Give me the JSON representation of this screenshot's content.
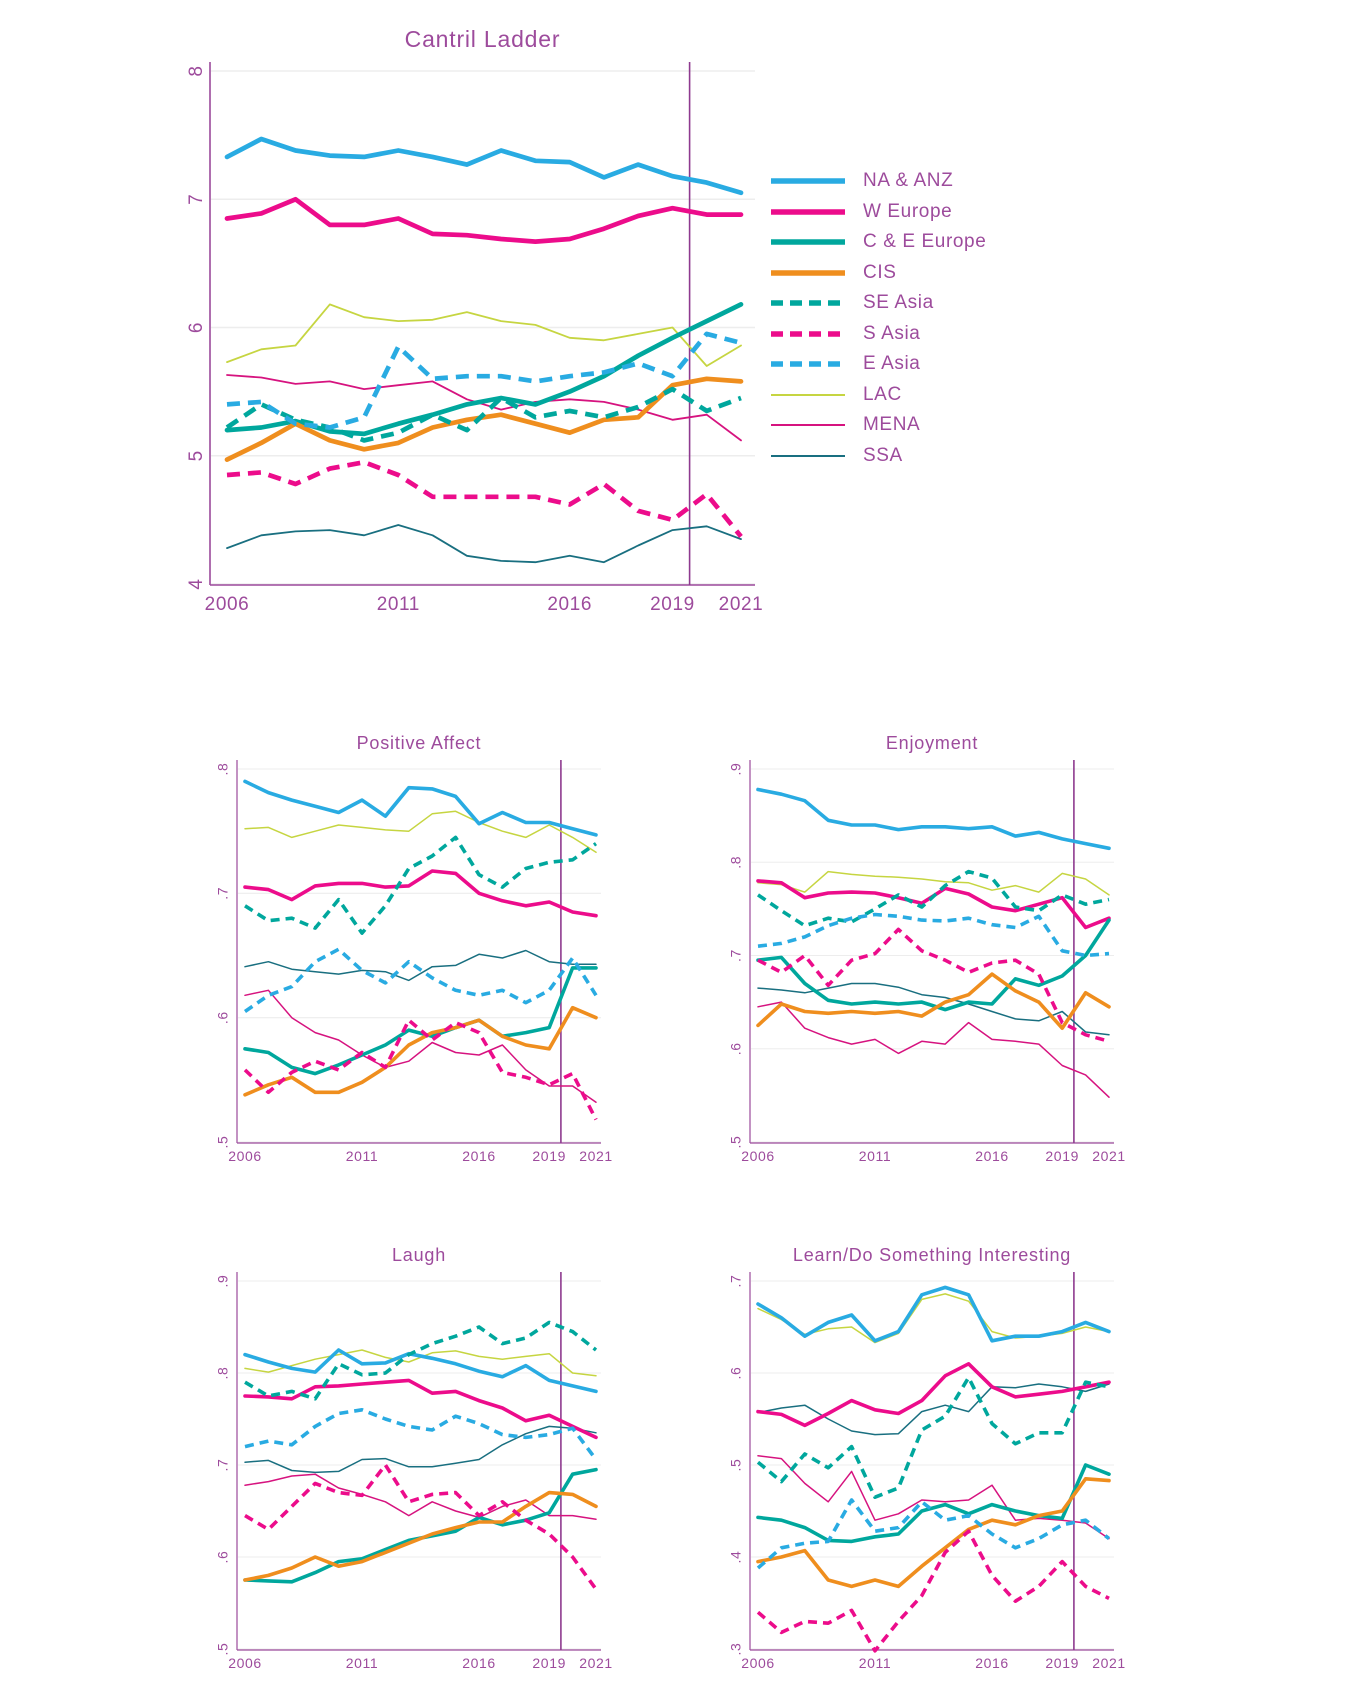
{
  "colors": {
    "blue": "#29ABE2",
    "magenta": "#EC0C8B",
    "teal": "#00A79D",
    "orange": "#EF8E1E",
    "lime": "#C6D541",
    "crimson": "#D6137F",
    "dark_teal": "#196F80",
    "text_purple": "#9D4B9C",
    "axis_purple": "#9B4A9B",
    "refline_purple": "#8E3A8F",
    "grid_gray": "#EDEDED"
  },
  "regions": [
    {
      "id": "na_anz",
      "label": "NA & ANZ",
      "color": "blue",
      "weight": "thick",
      "dash": false
    },
    {
      "id": "w_europe",
      "label": "W Europe",
      "color": "magenta",
      "weight": "thick",
      "dash": false
    },
    {
      "id": "c_e_europe",
      "label": "C & E Europe",
      "color": "teal",
      "weight": "thick",
      "dash": false
    },
    {
      "id": "cis",
      "label": "CIS",
      "color": "orange",
      "weight": "thick",
      "dash": false
    },
    {
      "id": "se_asia",
      "label": "SE Asia",
      "color": "teal",
      "weight": "thick",
      "dash": true
    },
    {
      "id": "s_asia",
      "label": "S Asia",
      "color": "magenta",
      "weight": "thick",
      "dash": true
    },
    {
      "id": "e_asia",
      "label": "E Asia",
      "color": "blue",
      "weight": "thick",
      "dash": true
    },
    {
      "id": "lac",
      "label": "LAC",
      "color": "lime",
      "weight": "thin",
      "dash": false
    },
    {
      "id": "mena",
      "label": "MENA",
      "color": "crimson",
      "weight": "thin",
      "dash": false
    },
    {
      "id": "ssa",
      "label": "SSA",
      "color": "dark_teal",
      "weight": "thin",
      "dash": false
    }
  ],
  "x": {
    "years": [
      2006,
      2007,
      2008,
      2009,
      2010,
      2011,
      2012,
      2013,
      2014,
      2015,
      2016,
      2017,
      2018,
      2019,
      2020,
      2021
    ],
    "tick_years": [
      2006,
      2011,
      2016,
      2019,
      2021
    ],
    "refline_year": 2019.5
  },
  "chart_data": [
    {
      "type": "line",
      "id": "cantril_ladder",
      "title": "Cantril Ladder",
      "ylim": [
        4,
        8
      ],
      "yticks": [
        {
          "v": 4,
          "label": "4"
        },
        {
          "v": 5,
          "label": "5"
        },
        {
          "v": 6,
          "label": "6"
        },
        {
          "v": 7,
          "label": "7"
        },
        {
          "v": 8,
          "label": "8"
        }
      ],
      "grid": true,
      "legend_position": "right",
      "series": {
        "na_anz": [
          7.33,
          7.47,
          7.38,
          7.34,
          7.33,
          7.38,
          7.33,
          7.27,
          7.38,
          7.3,
          7.29,
          7.17,
          7.27,
          7.18,
          7.13,
          7.05
        ],
        "w_europe": [
          6.85,
          6.89,
          7.0,
          6.8,
          6.8,
          6.85,
          6.73,
          6.72,
          6.69,
          6.67,
          6.69,
          6.77,
          6.87,
          6.93,
          6.88,
          6.88
        ],
        "c_e_europe": [
          5.2,
          5.22,
          5.27,
          5.19,
          5.17,
          5.25,
          5.32,
          5.4,
          5.45,
          5.4,
          5.5,
          5.62,
          5.78,
          5.92,
          6.05,
          6.18
        ],
        "cis": [
          4.97,
          5.1,
          5.25,
          5.12,
          5.05,
          5.1,
          5.22,
          5.28,
          5.32,
          5.25,
          5.18,
          5.28,
          5.3,
          5.55,
          5.6,
          5.58
        ],
        "se_asia": [
          5.22,
          5.4,
          5.28,
          5.22,
          5.12,
          5.18,
          5.32,
          5.2,
          5.45,
          5.3,
          5.35,
          5.3,
          5.38,
          5.52,
          5.35,
          5.45
        ],
        "s_asia": [
          4.85,
          4.87,
          4.78,
          4.9,
          4.95,
          4.85,
          4.68,
          4.68,
          4.68,
          4.68,
          4.62,
          4.78,
          4.57,
          4.5,
          4.7,
          4.37
        ],
        "e_asia": [
          5.4,
          5.42,
          5.25,
          5.22,
          5.3,
          5.85,
          5.6,
          5.62,
          5.62,
          5.58,
          5.62,
          5.65,
          5.72,
          5.62,
          5.95,
          5.88
        ],
        "lac": [
          5.73,
          5.83,
          5.86,
          6.18,
          6.08,
          6.05,
          6.06,
          6.12,
          6.05,
          6.02,
          5.92,
          5.9,
          5.95,
          6.0,
          5.7,
          5.86
        ],
        "mena": [
          5.63,
          5.61,
          5.56,
          5.58,
          5.52,
          5.55,
          5.58,
          5.44,
          5.36,
          5.42,
          5.44,
          5.42,
          5.36,
          5.28,
          5.32,
          5.12
        ],
        "ssa": [
          4.28,
          4.38,
          4.41,
          4.42,
          4.38,
          4.46,
          4.38,
          4.22,
          4.18,
          4.17,
          4.22,
          4.17,
          4.3,
          4.42,
          4.45,
          4.35
        ]
      }
    },
    {
      "type": "line",
      "id": "positive_affect",
      "title": "Positive Affect",
      "ylim": [
        0.5,
        0.8
      ],
      "yticks": [
        {
          "v": 0.5,
          "label": ".5"
        },
        {
          "v": 0.6,
          "label": ".6"
        },
        {
          "v": 0.7,
          "label": ".7"
        },
        {
          "v": 0.8,
          "label": ".8"
        }
      ],
      "grid": true,
      "series": {
        "na_anz": [
          0.79,
          0.781,
          0.775,
          0.77,
          0.765,
          0.775,
          0.762,
          0.785,
          0.784,
          0.778,
          0.756,
          0.765,
          0.757,
          0.757,
          0.752,
          0.747
        ],
        "w_europe": [
          0.705,
          0.703,
          0.695,
          0.706,
          0.708,
          0.708,
          0.705,
          0.706,
          0.718,
          0.716,
          0.7,
          0.694,
          0.69,
          0.693,
          0.685,
          0.682
        ],
        "c_e_europe": [
          0.575,
          0.572,
          0.56,
          0.555,
          0.562,
          0.57,
          0.578,
          0.59,
          0.585,
          0.592,
          0.598,
          0.585,
          0.588,
          0.592,
          0.64,
          0.64
        ],
        "cis": [
          0.538,
          0.546,
          0.552,
          0.54,
          0.54,
          0.548,
          0.56,
          0.578,
          0.588,
          0.592,
          0.598,
          0.585,
          0.578,
          0.575,
          0.608,
          0.6
        ],
        "se_asia": [
          0.69,
          0.678,
          0.68,
          0.672,
          0.695,
          0.668,
          0.69,
          0.72,
          0.73,
          0.745,
          0.715,
          0.705,
          0.72,
          0.725,
          0.727,
          0.74
        ],
        "s_asia": [
          0.558,
          0.54,
          0.556,
          0.565,
          0.558,
          0.572,
          0.56,
          0.598,
          0.582,
          0.596,
          0.588,
          0.556,
          0.552,
          0.546,
          0.555,
          0.518
        ],
        "e_asia": [
          0.605,
          0.618,
          0.625,
          0.645,
          0.655,
          0.638,
          0.628,
          0.645,
          0.632,
          0.622,
          0.618,
          0.622,
          0.612,
          0.622,
          0.648,
          0.618
        ],
        "lac": [
          0.752,
          0.753,
          0.745,
          0.75,
          0.755,
          0.753,
          0.751,
          0.75,
          0.764,
          0.766,
          0.757,
          0.75,
          0.745,
          0.755,
          0.745,
          0.733
        ],
        "mena": [
          0.618,
          0.622,
          0.6,
          0.588,
          0.582,
          0.57,
          0.56,
          0.565,
          0.58,
          0.572,
          0.57,
          0.578,
          0.558,
          0.545,
          0.545,
          0.532
        ],
        "ssa": [
          0.641,
          0.645,
          0.639,
          0.637,
          0.635,
          0.638,
          0.637,
          0.63,
          0.641,
          0.642,
          0.651,
          0.648,
          0.654,
          0.645,
          0.643,
          0.643
        ]
      }
    },
    {
      "type": "line",
      "id": "enjoyment",
      "title": "Enjoyment",
      "ylim": [
        0.5,
        0.9
      ],
      "yticks": [
        {
          "v": 0.5,
          "label": ".5"
        },
        {
          "v": 0.6,
          "label": ".6"
        },
        {
          "v": 0.7,
          "label": ".7"
        },
        {
          "v": 0.8,
          "label": ".8"
        },
        {
          "v": 0.9,
          "label": ".9"
        }
      ],
      "grid": true,
      "series": {
        "na_anz": [
          0.878,
          0.873,
          0.866,
          0.845,
          0.84,
          0.84,
          0.835,
          0.838,
          0.838,
          0.836,
          0.838,
          0.828,
          0.832,
          0.825,
          0.82,
          0.815
        ],
        "w_europe": [
          0.78,
          0.778,
          0.762,
          0.767,
          0.768,
          0.767,
          0.762,
          0.756,
          0.772,
          0.766,
          0.752,
          0.748,
          0.755,
          0.762,
          0.73,
          0.74
        ],
        "c_e_europe": [
          0.695,
          0.698,
          0.67,
          0.652,
          0.648,
          0.65,
          0.648,
          0.65,
          0.642,
          0.65,
          0.648,
          0.675,
          0.668,
          0.678,
          0.7,
          0.738
        ],
        "cis": [
          0.625,
          0.648,
          0.64,
          0.638,
          0.64,
          0.638,
          0.64,
          0.635,
          0.65,
          0.658,
          0.68,
          0.662,
          0.65,
          0.622,
          0.66,
          0.645
        ],
        "se_asia": [
          0.765,
          0.748,
          0.732,
          0.74,
          0.736,
          0.75,
          0.765,
          0.752,
          0.775,
          0.79,
          0.783,
          0.752,
          0.748,
          0.765,
          0.755,
          0.76
        ],
        "s_asia": [
          0.695,
          0.682,
          0.7,
          0.668,
          0.695,
          0.702,
          0.728,
          0.705,
          0.695,
          0.682,
          0.692,
          0.695,
          0.68,
          0.628,
          0.615,
          0.608
        ],
        "e_asia": [
          0.71,
          0.713,
          0.72,
          0.732,
          0.74,
          0.744,
          0.742,
          0.738,
          0.737,
          0.74,
          0.733,
          0.73,
          0.742,
          0.705,
          0.7,
          0.702
        ],
        "lac": [
          0.778,
          0.776,
          0.768,
          0.79,
          0.787,
          0.785,
          0.784,
          0.782,
          0.779,
          0.778,
          0.77,
          0.775,
          0.768,
          0.788,
          0.782,
          0.765
        ],
        "mena": [
          0.645,
          0.65,
          0.622,
          0.612,
          0.605,
          0.61,
          0.595,
          0.608,
          0.605,
          0.628,
          0.61,
          0.608,
          0.605,
          0.582,
          0.572,
          0.548
        ],
        "ssa": [
          0.665,
          0.663,
          0.66,
          0.665,
          0.67,
          0.67,
          0.666,
          0.658,
          0.655,
          0.648,
          0.64,
          0.632,
          0.63,
          0.64,
          0.618,
          0.615
        ]
      }
    },
    {
      "type": "line",
      "id": "laugh",
      "title": "Laugh",
      "ylim": [
        0.5,
        0.9
      ],
      "yticks": [
        {
          "v": 0.5,
          "label": ".5"
        },
        {
          "v": 0.6,
          "label": ".6"
        },
        {
          "v": 0.7,
          "label": ".7"
        },
        {
          "v": 0.8,
          "label": ".8"
        },
        {
          "v": 0.9,
          "label": ".9"
        }
      ],
      "grid": true,
      "series": {
        "na_anz": [
          0.82,
          0.812,
          0.805,
          0.801,
          0.825,
          0.81,
          0.811,
          0.821,
          0.816,
          0.81,
          0.802,
          0.796,
          0.808,
          0.792,
          0.786,
          0.78
        ],
        "w_europe": [
          0.775,
          0.774,
          0.772,
          0.785,
          0.786,
          0.788,
          0.79,
          0.792,
          0.778,
          0.78,
          0.77,
          0.762,
          0.748,
          0.754,
          0.742,
          0.73
        ],
        "c_e_europe": [
          0.575,
          0.574,
          0.573,
          0.583,
          0.595,
          0.598,
          0.608,
          0.618,
          0.623,
          0.628,
          0.643,
          0.635,
          0.64,
          0.648,
          0.69,
          0.695
        ],
        "cis": [
          0.575,
          0.58,
          0.588,
          0.6,
          0.59,
          0.595,
          0.605,
          0.615,
          0.625,
          0.632,
          0.638,
          0.638,
          0.655,
          0.67,
          0.668,
          0.655
        ],
        "se_asia": [
          0.79,
          0.775,
          0.78,
          0.772,
          0.81,
          0.798,
          0.8,
          0.82,
          0.832,
          0.84,
          0.85,
          0.832,
          0.838,
          0.855,
          0.845,
          0.825
        ],
        "s_asia": [
          0.645,
          0.63,
          0.655,
          0.68,
          0.67,
          0.667,
          0.7,
          0.66,
          0.668,
          0.67,
          0.645,
          0.66,
          0.64,
          0.625,
          0.6,
          0.565
        ],
        "e_asia": [
          0.72,
          0.726,
          0.722,
          0.742,
          0.756,
          0.76,
          0.75,
          0.742,
          0.738,
          0.753,
          0.745,
          0.733,
          0.73,
          0.733,
          0.74,
          0.706
        ],
        "lac": [
          0.805,
          0.801,
          0.808,
          0.815,
          0.82,
          0.825,
          0.817,
          0.812,
          0.822,
          0.824,
          0.818,
          0.815,
          0.818,
          0.821,
          0.8,
          0.797
        ],
        "mena": [
          0.678,
          0.682,
          0.688,
          0.69,
          0.675,
          0.668,
          0.66,
          0.645,
          0.66,
          0.65,
          0.643,
          0.655,
          0.662,
          0.645,
          0.645,
          0.641
        ],
        "ssa": [
          0.703,
          0.705,
          0.694,
          0.692,
          0.693,
          0.706,
          0.707,
          0.698,
          0.698,
          0.702,
          0.706,
          0.722,
          0.734,
          0.742,
          0.74,
          0.735
        ]
      }
    },
    {
      "type": "line",
      "id": "learn_do_something_interesting",
      "title": "Learn/Do Something Interesting",
      "ylim": [
        0.3,
        0.7
      ],
      "yticks": [
        {
          "v": 0.3,
          "label": ".3"
        },
        {
          "v": 0.4,
          "label": ".4"
        },
        {
          "v": 0.5,
          "label": ".5"
        },
        {
          "v": 0.6,
          "label": ".6"
        },
        {
          "v": 0.7,
          "label": ".7"
        }
      ],
      "grid": true,
      "series": {
        "na_anz": [
          0.675,
          0.66,
          0.64,
          0.655,
          0.663,
          0.635,
          0.645,
          0.685,
          0.693,
          0.685,
          0.635,
          0.64,
          0.64,
          0.645,
          0.655,
          0.645
        ],
        "w_europe": [
          0.558,
          0.555,
          0.543,
          0.556,
          0.57,
          0.56,
          0.556,
          0.57,
          0.597,
          0.61,
          0.585,
          0.574,
          0.577,
          0.58,
          0.585,
          0.59
        ],
        "c_e_europe": [
          0.443,
          0.44,
          0.432,
          0.418,
          0.417,
          0.422,
          0.425,
          0.45,
          0.457,
          0.447,
          0.457,
          0.45,
          0.445,
          0.442,
          0.5,
          0.49
        ],
        "cis": [
          0.395,
          0.4,
          0.407,
          0.375,
          0.368,
          0.375,
          0.368,
          0.39,
          0.41,
          0.43,
          0.44,
          0.435,
          0.445,
          0.45,
          0.485,
          0.483
        ],
        "se_asia": [
          0.503,
          0.482,
          0.512,
          0.497,
          0.52,
          0.465,
          0.475,
          0.538,
          0.553,
          0.595,
          0.545,
          0.523,
          0.535,
          0.535,
          0.59,
          0.585
        ],
        "s_asia": [
          0.34,
          0.318,
          0.33,
          0.328,
          0.342,
          0.298,
          0.33,
          0.358,
          0.405,
          0.428,
          0.38,
          0.352,
          0.368,
          0.395,
          0.368,
          0.355
        ],
        "e_asia": [
          0.388,
          0.41,
          0.415,
          0.417,
          0.462,
          0.428,
          0.432,
          0.46,
          0.44,
          0.445,
          0.425,
          0.41,
          0.42,
          0.435,
          0.44,
          0.42
        ],
        "lac": [
          0.67,
          0.658,
          0.642,
          0.648,
          0.65,
          0.633,
          0.643,
          0.68,
          0.686,
          0.678,
          0.645,
          0.638,
          0.64,
          0.643,
          0.65,
          0.645
        ],
        "mena": [
          0.51,
          0.507,
          0.48,
          0.46,
          0.493,
          0.44,
          0.447,
          0.462,
          0.46,
          0.462,
          0.478,
          0.44,
          0.442,
          0.44,
          0.437,
          0.42
        ],
        "ssa": [
          0.557,
          0.562,
          0.565,
          0.55,
          0.537,
          0.533,
          0.534,
          0.558,
          0.565,
          0.558,
          0.585,
          0.584,
          0.588,
          0.585,
          0.58,
          0.588
        ]
      }
    }
  ]
}
